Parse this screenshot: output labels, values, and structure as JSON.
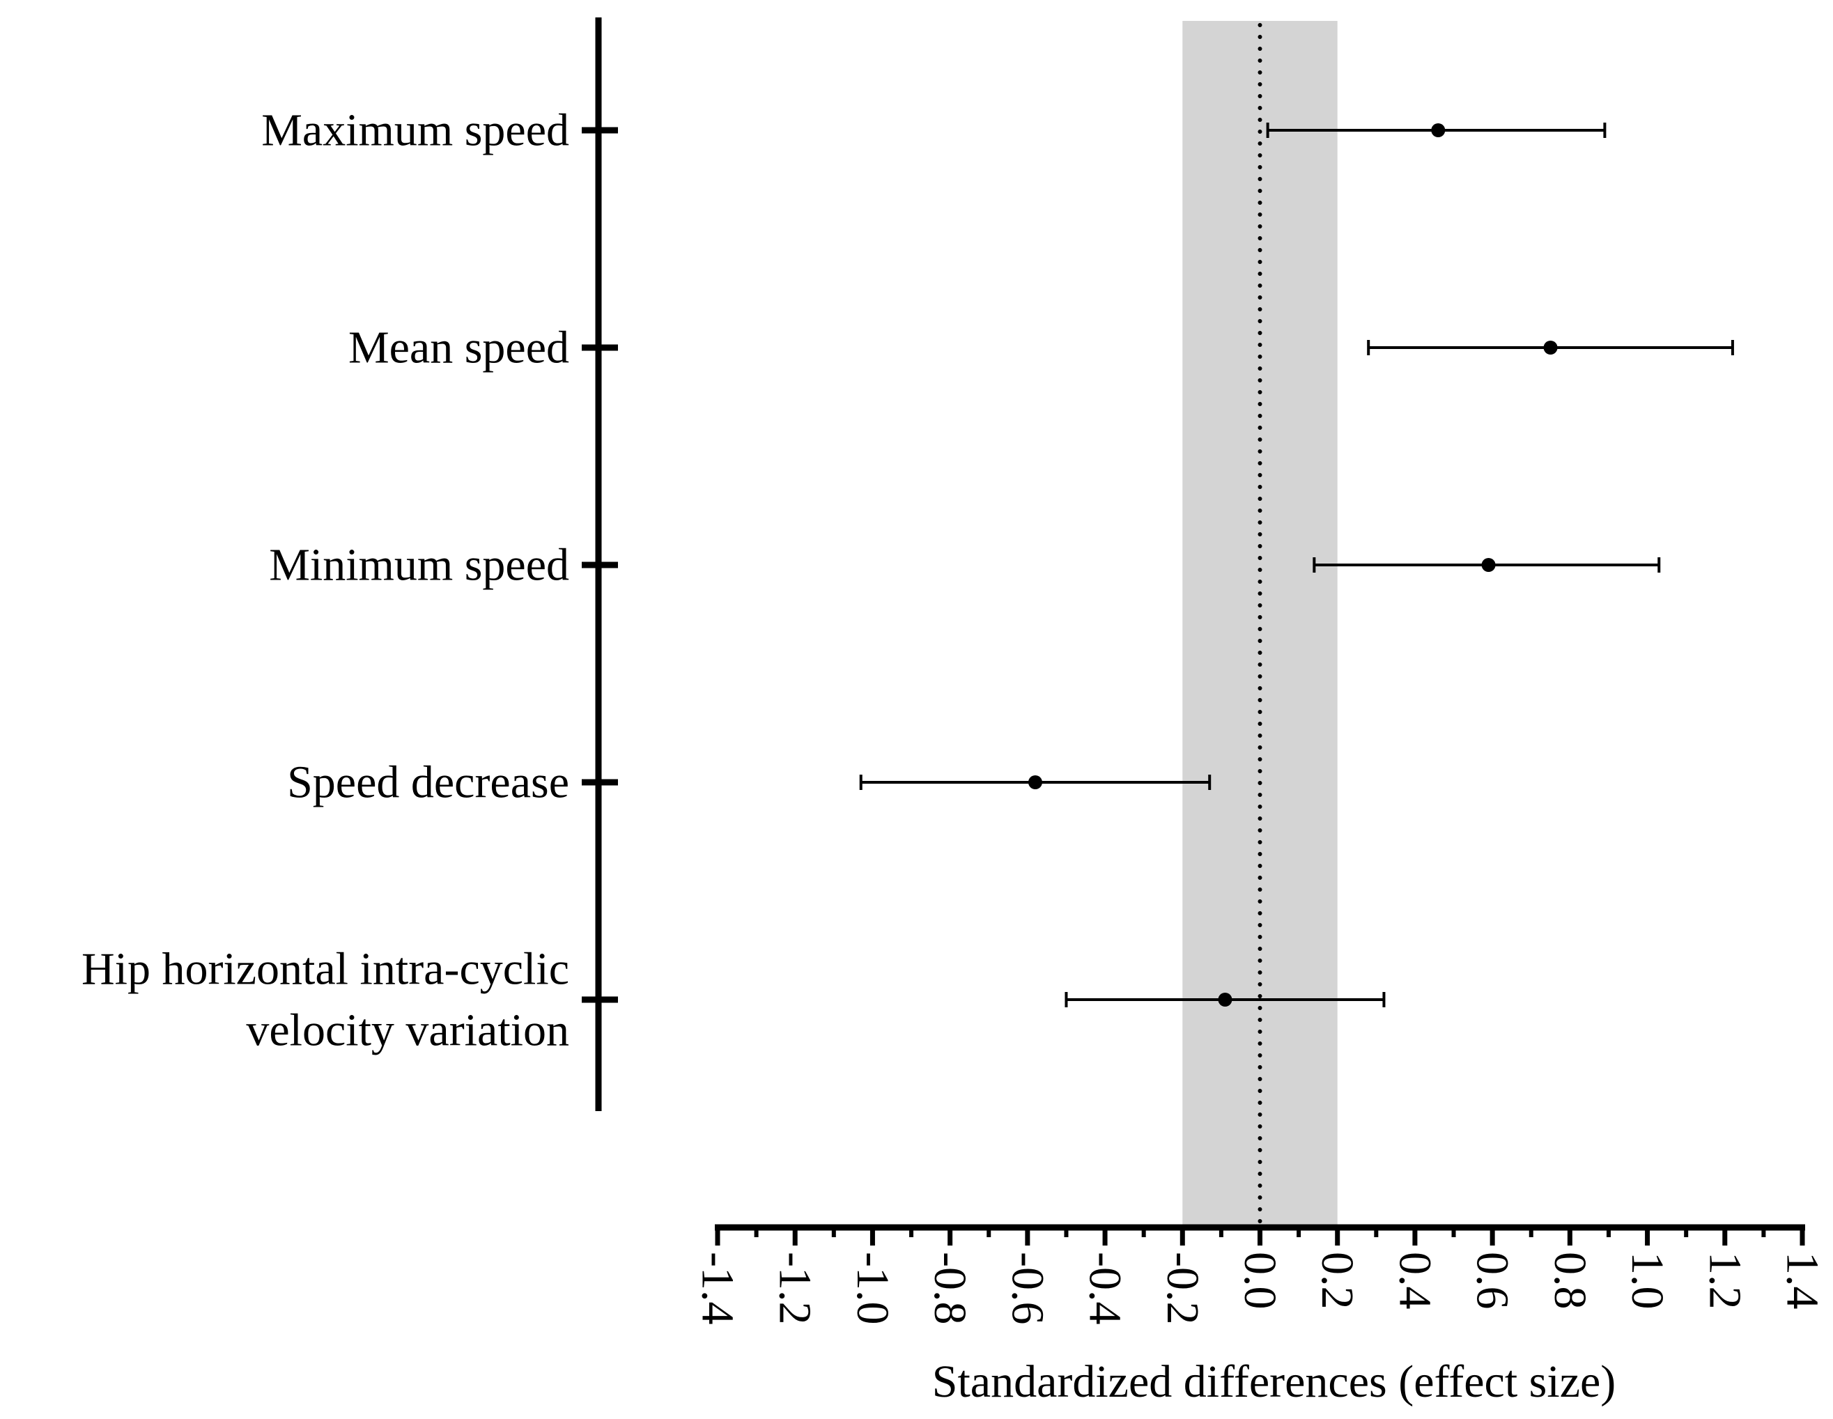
{
  "chart_data": {
    "type": "forest",
    "xlabel": "Standardized differences (effect size)",
    "ylabel": "",
    "title": "",
    "xlim": [
      -1.4,
      1.4
    ],
    "x_ticks": [
      "-1.4",
      "-1.2",
      "-1.0",
      "-0.8",
      "-0.6",
      "-0.4",
      "-0.2",
      "0.0",
      "0.2",
      "0.4",
      "0.6",
      "0.8",
      "1.0",
      "1.2",
      "1.4"
    ],
    "x_tick_values": [
      -1.4,
      -1.2,
      -1.0,
      -0.8,
      -0.6,
      -0.4,
      -0.2,
      0.0,
      0.2,
      0.4,
      0.6,
      0.8,
      1.0,
      1.2,
      1.4
    ],
    "reference_line": 0.0,
    "trivial_region": [
      -0.2,
      0.2
    ],
    "categories": [
      {
        "lines": [
          "Maximum speed"
        ],
        "estimate": 0.46,
        "ci": [
          0.02,
          0.89
        ]
      },
      {
        "lines": [
          "Mean speed"
        ],
        "estimate": 0.75,
        "ci": [
          0.28,
          1.22
        ]
      },
      {
        "lines": [
          "Minimum speed"
        ],
        "estimate": 0.59,
        "ci": [
          0.14,
          1.03
        ]
      },
      {
        "lines": [
          "Speed decrease"
        ],
        "estimate": -0.58,
        "ci": [
          -1.03,
          -0.13
        ]
      },
      {
        "lines": [
          "Hip horizontal intra-cyclic",
          "velocity variation"
        ],
        "estimate": -0.09,
        "ci": [
          -0.5,
          0.32
        ]
      }
    ],
    "colors": {
      "region": "#d4d4d4",
      "marks": "#000000"
    }
  }
}
